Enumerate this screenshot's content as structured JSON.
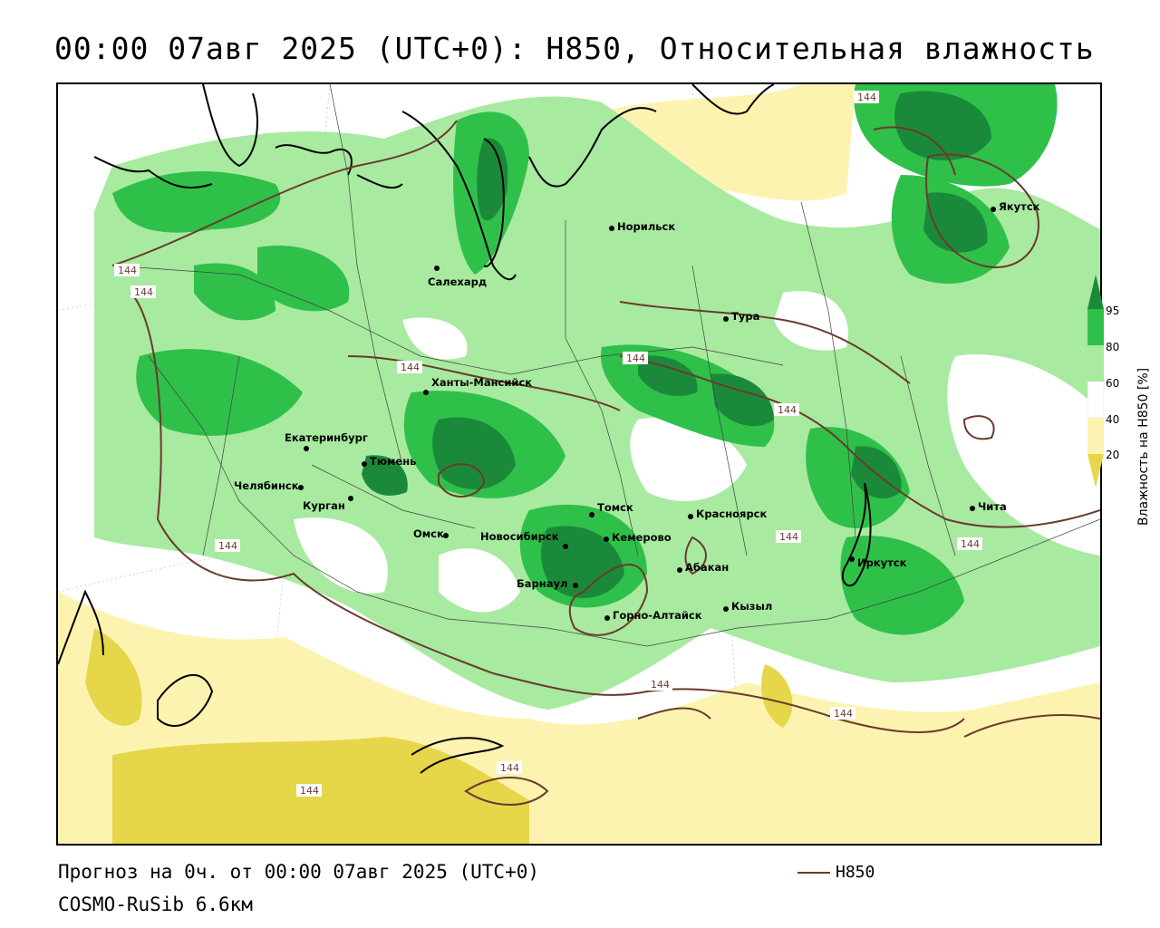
{
  "title": "00:00 07авг 2025 (UTC+0): H850, Относительная влажность",
  "footer": {
    "forecast": "Прогноз на 0ч. от 00:00 07авг 2025 (UTC+0)",
    "model": "COSMO-RuSib 6.6км",
    "line_legend": "H850"
  },
  "colorbar": {
    "title": "Влажность на H850 [%]",
    "ticks": [
      "95",
      "80",
      "60",
      "40",
      "20"
    ],
    "colors": {
      "c95": "#1a8a3a",
      "c80": "#2fc04a",
      "c60": "#a8eaa0",
      "c40": "#ffffff",
      "c20": "#fdf3b0",
      "c0": "#e6d64a"
    }
  },
  "contour_label": "144",
  "cities": [
    {
      "name": "Салехард"
    },
    {
      "name": "Норильск"
    },
    {
      "name": "Якутск"
    },
    {
      "name": "Тура"
    },
    {
      "name": "Ханты-Мансийск"
    },
    {
      "name": "Екатеринбург"
    },
    {
      "name": "Тюмень"
    },
    {
      "name": "Челябинск"
    },
    {
      "name": "Курган"
    },
    {
      "name": "Омск"
    },
    {
      "name": "Новосибирск"
    },
    {
      "name": "Томск"
    },
    {
      "name": "Кемерово"
    },
    {
      "name": "Барнаул"
    },
    {
      "name": "Красноярск"
    },
    {
      "name": "Абакан"
    },
    {
      "name": "Кызыл"
    },
    {
      "name": "Горно-Алтайск"
    },
    {
      "name": "Иркутск"
    },
    {
      "name": "Чита"
    }
  ]
}
